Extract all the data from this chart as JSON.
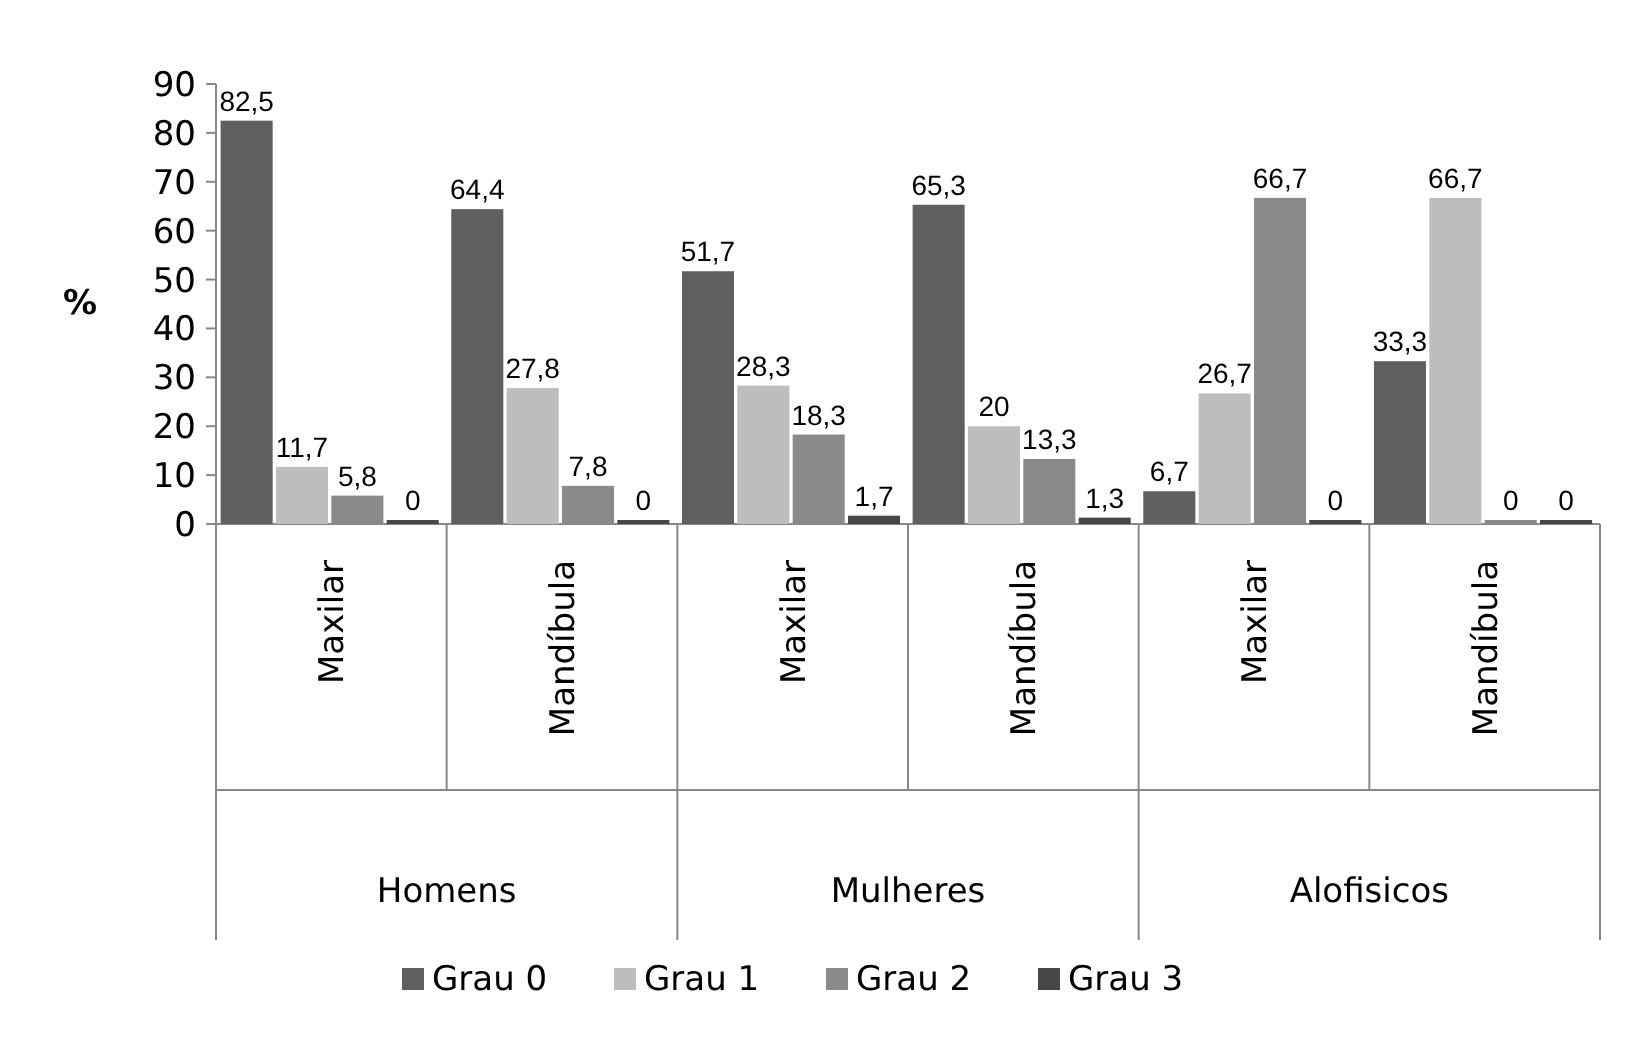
{
  "chart_data": {
    "type": "bar",
    "ylabel": "%",
    "categories": [
      "Maxilar",
      "Mandíbula",
      "Maxilar",
      "Mandíbula",
      "Maxilar",
      "Mandíbula"
    ],
    "series": [
      {
        "name": "Grau 0",
        "color": "#5f5f5f",
        "values": [
          82.5,
          64.4,
          51.7,
          65.3,
          6.7,
          33.3
        ],
        "value_labels": [
          "82,5",
          "64,4",
          "51,7",
          "65,3",
          "6,7",
          "33,3"
        ]
      },
      {
        "name": "Grau 1",
        "color": "#bdbdbd",
        "values": [
          11.7,
          27.8,
          28.3,
          20,
          26.7,
          66.7
        ],
        "value_labels": [
          "11,7",
          "27,8",
          "28,3",
          "20",
          "26,7",
          "66,7"
        ]
      },
      {
        "name": "Grau 2",
        "color": "#8a8a8a",
        "values": [
          5.8,
          7.8,
          18.3,
          13.3,
          66.7,
          0
        ],
        "value_labels": [
          "5,8",
          "7,8",
          "18,3",
          "13,3",
          "66,7",
          "0"
        ]
      },
      {
        "name": "Grau 3",
        "color": "#474747",
        "values": [
          0,
          0,
          1.7,
          1.3,
          0,
          0
        ],
        "value_labels": [
          "0",
          "0",
          "1,7",
          "1,3",
          "0",
          "0"
        ]
      }
    ],
    "annotations": [
      "Homens",
      "Mulheres",
      "Alofisicos"
    ],
    "ylim": [
      0,
      90
    ],
    "yticks": [
      0,
      10,
      20,
      30,
      40,
      50,
      60,
      70,
      80,
      90
    ],
    "grid": false,
    "legend": "bottom"
  }
}
